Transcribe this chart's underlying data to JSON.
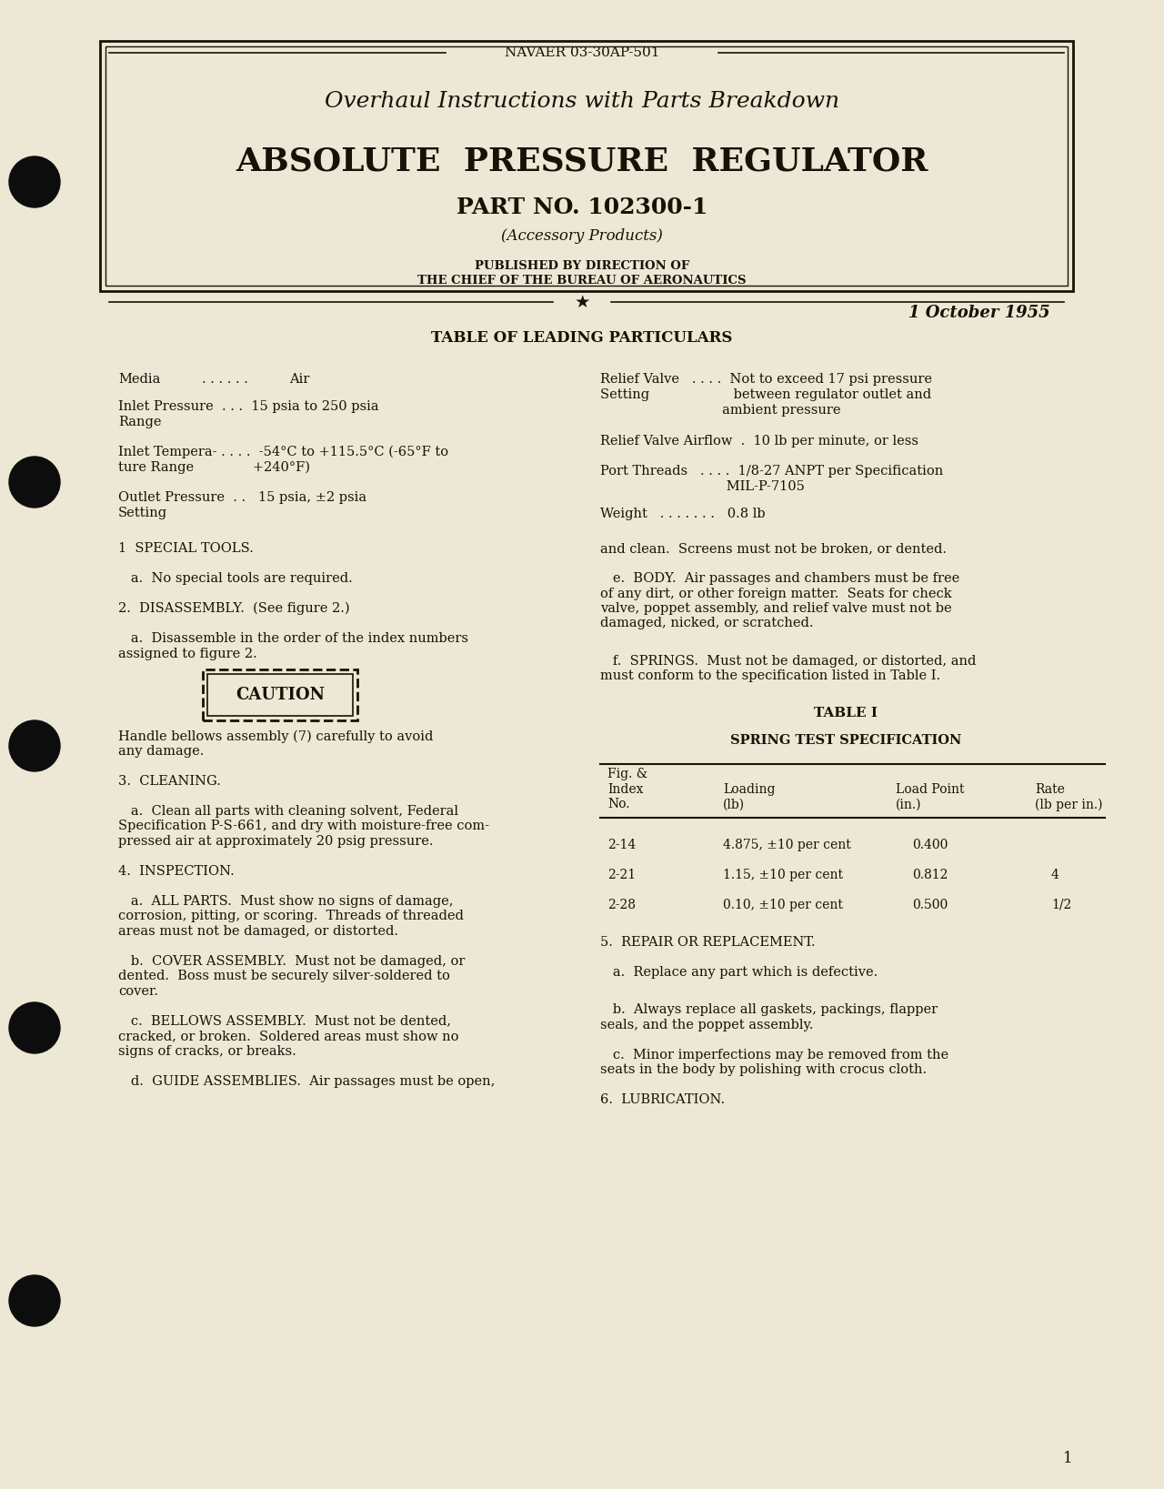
{
  "bg_color": "#f5f0e0",
  "page_bg": "#ede8d5",
  "text_color": "#1a1008",
  "header_doc_number": "NAVAER 03-30AP-501",
  "title_line1": "Overhaul Instructions with Parts Breakdown",
  "title_line2": "ABSOLUTE  PRESSURE  REGULATOR",
  "title_line3": "PART NO. 102300-1",
  "title_line4": "(Accessory Products)",
  "pub_line1": "PUBLISHED BY DIRECTION OF",
  "pub_line2": "THE CHIEF OF THE BUREAU OF AERONAUTICS",
  "date": "1 October 1955",
  "section_title": "TABLE OF LEADING PARTICULARS",
  "table1_title": "TABLE I",
  "table1_subtitle": "SPRING TEST SPECIFICATION",
  "page_number": "1",
  "hole_color": "#0d0d0d"
}
